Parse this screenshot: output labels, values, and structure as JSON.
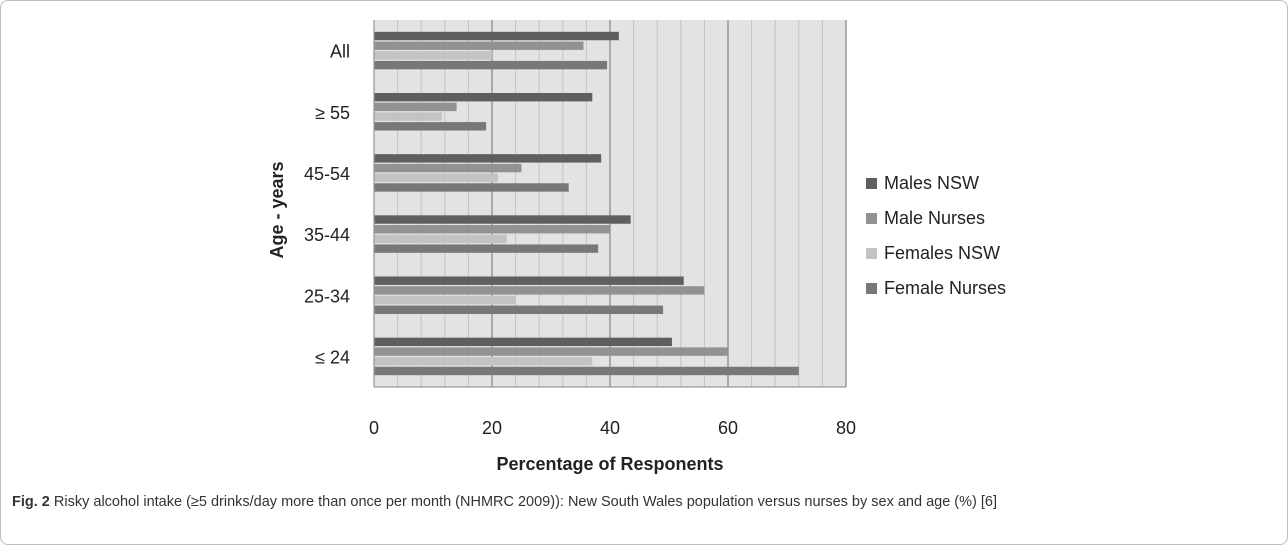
{
  "chart_data": {
    "type": "bar",
    "orientation": "horizontal",
    "categories": [
      "All",
      "≥ 55",
      "45-54",
      "35-44",
      "25-34",
      "≤ 24"
    ],
    "series": [
      {
        "name": "Males NSW",
        "values": [
          41.5,
          37,
          38.5,
          43.5,
          52.5,
          50.5
        ],
        "color": "#5f5f5f"
      },
      {
        "name": "Male Nurses",
        "values": [
          35.5,
          14,
          25,
          40,
          56,
          60
        ],
        "color": "#929292"
      },
      {
        "name": "Females NSW",
        "values": [
          20,
          11.5,
          21,
          22.5,
          24,
          37
        ],
        "color": "#c3c3c3"
      },
      {
        "name": "Female Nurses",
        "values": [
          39.5,
          19,
          33,
          38,
          49,
          72
        ],
        "color": "#787878"
      }
    ],
    "xlabel": "Percentage of Responents",
    "ylabel": "Age - years",
    "xlim": [
      0,
      80
    ],
    "xticks": [
      "0",
      "20",
      "40",
      "60",
      "80"
    ],
    "grid": "vertical major and minor",
    "legend_position": "right"
  },
  "caption": {
    "label": "Fig. 2",
    "text": " Risky alcohol intake (≥5 drinks/day more than once per month (NHMRC 2009)): New South Wales population versus nurses by sex and age (%) [6]"
  }
}
